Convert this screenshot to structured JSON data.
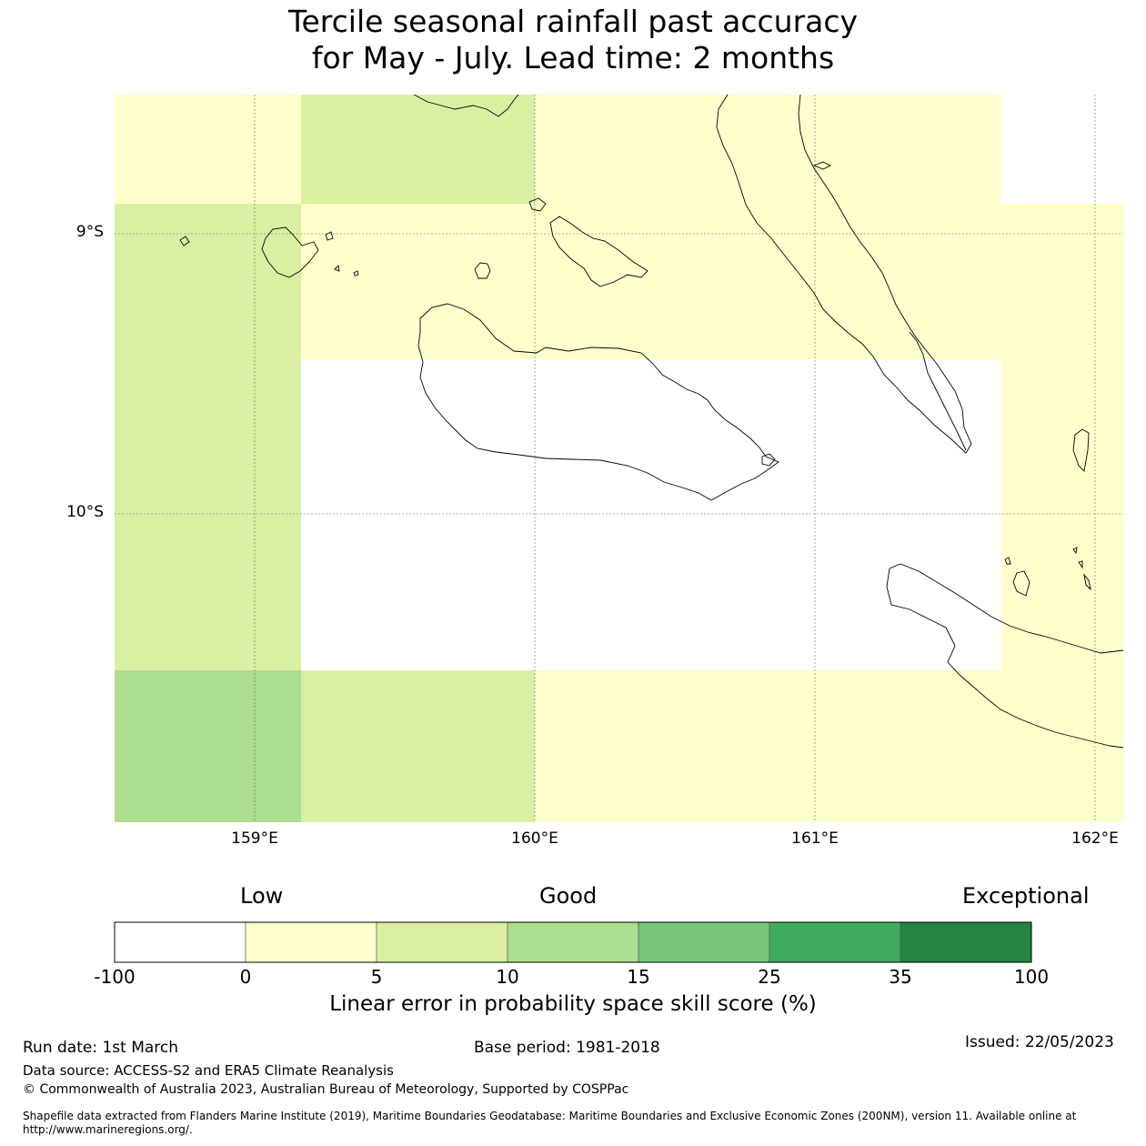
{
  "title": {
    "line1": "Tercile seasonal rainfall past accuracy",
    "line2": "for May - July. Lead time: 2 months"
  },
  "map": {
    "lat_labels": [
      "9°S",
      "10°S"
    ],
    "lon_labels": [
      "159°E",
      "160°E",
      "161°E",
      "162°E"
    ],
    "colors": {
      "none": "#ffffff",
      "c0_5": "#ffffcc",
      "c5_10": "#d9f0a3",
      "c10_15": "#addd8e"
    },
    "cells": [
      {
        "row": 0,
        "col": 0,
        "class": "c0_5"
      },
      {
        "row": 0,
        "col": 1,
        "class": "c5_10"
      },
      {
        "row": 0,
        "col": 2,
        "class": "c0_5"
      },
      {
        "row": 0,
        "col": 3,
        "class": "c0_5"
      },
      {
        "row": 0,
        "col": 4,
        "class": "none"
      },
      {
        "row": 1,
        "col": 0,
        "class": "c5_10"
      },
      {
        "row": 1,
        "col": 1,
        "class": "c0_5"
      },
      {
        "row": 1,
        "col": 2,
        "class": "c0_5"
      },
      {
        "row": 1,
        "col": 3,
        "class": "c0_5"
      },
      {
        "row": 1,
        "col": 4,
        "class": "c0_5"
      },
      {
        "row": 2,
        "col": 0,
        "class": "c5_10"
      },
      {
        "row": 2,
        "col": 1,
        "class": "none"
      },
      {
        "row": 2,
        "col": 2,
        "class": "none"
      },
      {
        "row": 2,
        "col": 3,
        "class": "none"
      },
      {
        "row": 2,
        "col": 4,
        "class": "c0_5"
      },
      {
        "row": 3,
        "col": 0,
        "class": "c10_15"
      },
      {
        "row": 3,
        "col": 1,
        "class": "c5_10"
      },
      {
        "row": 3,
        "col": 2,
        "class": "c0_5"
      },
      {
        "row": 3,
        "col": 3,
        "class": "c0_5"
      },
      {
        "row": 3,
        "col": 4,
        "class": "c0_5"
      }
    ]
  },
  "colorbar": {
    "category_labels": [
      "Low",
      "Good",
      "Exceptional"
    ],
    "ticks": [
      "-100",
      "0",
      "5",
      "10",
      "15",
      "25",
      "35",
      "100"
    ],
    "colors": [
      "#ffffff",
      "#ffffcc",
      "#d9f0a3",
      "#addd8e",
      "#78c679",
      "#41ab5d",
      "#238443"
    ],
    "title": "Linear error in probability space skill score (%)"
  },
  "footer": {
    "run_date": "Run date: 1st March",
    "base_period": "Base period: 1981-2018",
    "issued": "Issued: 22/05/2023",
    "data_source": "Data source: ACCESS-S2 and ERA5 Climate Reanalysis",
    "copyright": "© Commonwealth of Australia 2023, Australian Bureau of Meteorology, Supported by COSPPac",
    "shapefile_line1": "Shapefile data extracted from Flanders Marine Institute (2019), Maritime Boundaries Geodatabase: Maritime Boundaries and Exclusive Economic Zones (200NM), version 11. Available online at",
    "shapefile_line2": "http://www.marineregions.org/."
  }
}
